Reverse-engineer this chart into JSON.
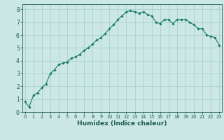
{
  "x": [
    0,
    0.5,
    1,
    1.5,
    2,
    2.5,
    3,
    3.5,
    4,
    4.5,
    5,
    5.5,
    6,
    6.5,
    7,
    7.5,
    8,
    8.5,
    9,
    9.5,
    10,
    10.5,
    11,
    11.5,
    12,
    12.5,
    13,
    13.5,
    14,
    14.5,
    15,
    15.5,
    16,
    16.5,
    17,
    17.5,
    18,
    18.5,
    19,
    19.5,
    20,
    20.5,
    21,
    21.5,
    22,
    22.5,
    23
  ],
  "y": [
    0.8,
    0.4,
    1.3,
    1.5,
    1.9,
    2.2,
    3.0,
    3.3,
    3.7,
    3.8,
    3.9,
    4.2,
    4.3,
    4.5,
    4.8,
    5.0,
    5.3,
    5.6,
    5.8,
    6.1,
    6.5,
    6.8,
    7.2,
    7.5,
    7.8,
    7.9,
    7.8,
    7.7,
    7.8,
    7.6,
    7.5,
    7.0,
    6.9,
    7.2,
    7.2,
    6.9,
    7.2,
    7.2,
    7.2,
    7.0,
    6.8,
    6.5,
    6.5,
    6.0,
    5.9,
    5.8,
    5.2
  ],
  "line_color": "#1a7a6e",
  "marker_color": "#1a7a6e",
  "bg_color": "#cce8e4",
  "grid_color": "#aacfcb",
  "xlabel": "Humidex (Indice chaleur)",
  "xlabel_fontsize": 6.5,
  "tick_label_color": "#1a5a50",
  "xlim": [
    -0.3,
    23.3
  ],
  "ylim": [
    0,
    8.4
  ],
  "yticks": [
    0,
    1,
    2,
    3,
    4,
    5,
    6,
    7,
    8
  ],
  "xticks": [
    0,
    1,
    2,
    3,
    4,
    5,
    6,
    7,
    8,
    9,
    10,
    11,
    12,
    13,
    14,
    15,
    16,
    17,
    18,
    19,
    20,
    21,
    22,
    23
  ]
}
